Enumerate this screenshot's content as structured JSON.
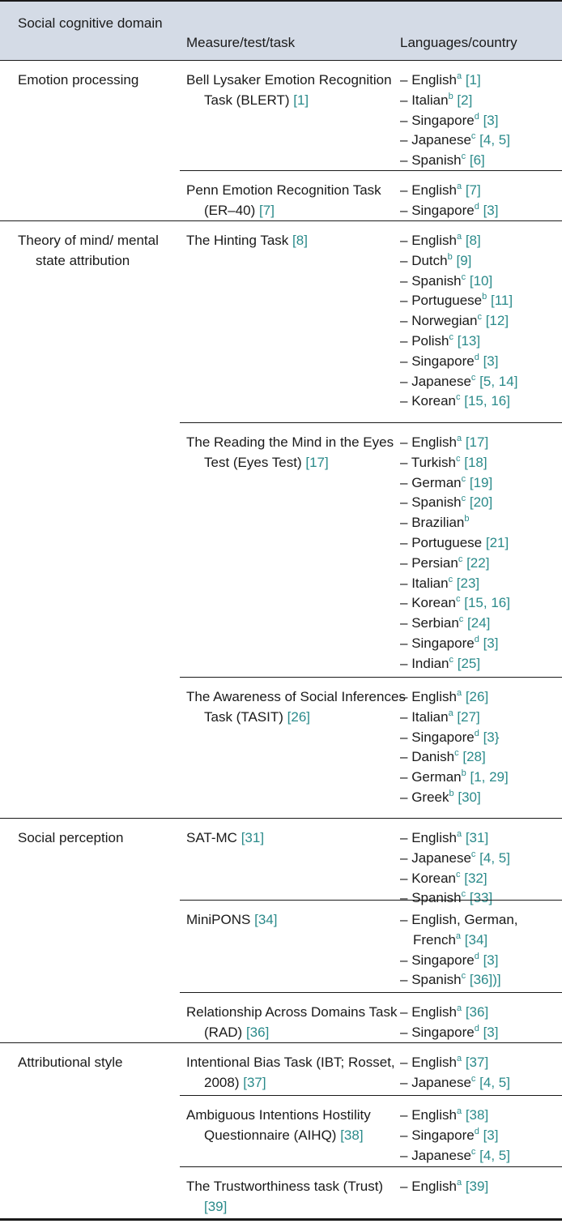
{
  "header": {
    "col1": "Social cognitive domain",
    "col2": "Measure/test/task",
    "col3": "Languages/country"
  },
  "domains": [
    {
      "label": "Emotion processing",
      "measures": [
        {
          "name": "Bell Lysaker Emotion Recognition Task (BLERT)",
          "ref": "[1]",
          "langs": [
            {
              "lang": "English",
              "sup": "a",
              "ref": "[1]"
            },
            {
              "lang": "Italian",
              "sup": "b",
              "ref": "[2]"
            },
            {
              "lang": "Singapore",
              "sup": "d",
              "ref": "[3]"
            },
            {
              "lang": "Japanese",
              "sup": "c",
              "ref": "[4, 5]"
            },
            {
              "lang": "Spanish",
              "sup": "c",
              "ref": "[6]"
            }
          ]
        },
        {
          "name": "Penn Emotion Recognition Task (ER–40)",
          "ref": "[7]",
          "langs": [
            {
              "lang": "English",
              "sup": "a",
              "ref": "[7]"
            },
            {
              "lang": "Singapore",
              "sup": "d",
              "ref": "[3]"
            }
          ]
        }
      ]
    },
    {
      "label": "Theory of mind/ mental state attribution",
      "measures": [
        {
          "name": "The Hinting Task",
          "ref": "[8]",
          "langs": [
            {
              "lang": "English",
              "sup": "a",
              "ref": "[8]"
            },
            {
              "lang": "Dutch",
              "sup": "b",
              "ref": "[9]"
            },
            {
              "lang": "Spanish",
              "sup": "c",
              "ref": "[10]"
            },
            {
              "lang": "Portuguese",
              "sup": "b",
              "ref": "[11]"
            },
            {
              "lang": "Norwegian",
              "sup": "c",
              "ref": "[12]"
            },
            {
              "lang": "Polish",
              "sup": "c",
              "ref": "[13]"
            },
            {
              "lang": "Singapore",
              "sup": "d",
              "ref": "[3]"
            },
            {
              "lang": "Japanese",
              "sup": "c",
              "ref": "[5, 14]"
            },
            {
              "lang": "Korean",
              "sup": "c",
              "ref": "[15, 16]"
            }
          ]
        },
        {
          "name": "The Reading the Mind in the Eyes Test (Eyes Test)",
          "ref": "[17]",
          "langs": [
            {
              "lang": "English",
              "sup": "a",
              "ref": "[17]"
            },
            {
              "lang": "Turkish",
              "sup": "c",
              "ref": "[18]"
            },
            {
              "lang": "German",
              "sup": "c",
              "ref": "[19]"
            },
            {
              "lang": "Spanish",
              "sup": "c",
              "ref": "[20]"
            },
            {
              "lang": "Brazilian",
              "sup": "b",
              "ref": ""
            },
            {
              "lang": "Portuguese",
              "sup": "",
              "ref": "[21]"
            },
            {
              "lang": "Persian",
              "sup": "c",
              "ref": "[22]"
            },
            {
              "lang": "Italian",
              "sup": "c",
              "ref": "[23]"
            },
            {
              "lang": "Korean",
              "sup": "c",
              "ref": "[15, 16]"
            },
            {
              "lang": "Serbian",
              "sup": "c",
              "ref": "[24]"
            },
            {
              "lang": "Singapore",
              "sup": "d",
              "ref": "[3]"
            },
            {
              "lang": "Indian",
              "sup": "c",
              "ref": "[25]"
            }
          ]
        },
        {
          "name": "The Awareness of Social Inferences Task (TASIT)",
          "ref": "[26]",
          "langs": [
            {
              "lang": "English",
              "sup": "a",
              "ref": "[26]"
            },
            {
              "lang": "Italian",
              "sup": "a",
              "ref": "[27]"
            },
            {
              "lang": "Singapore",
              "sup": "d",
              "ref": "[3}"
            },
            {
              "lang": "Danish",
              "sup": "c",
              "ref": "[28]"
            },
            {
              "lang": "German",
              "sup": "b",
              "ref": "[1, 29]"
            },
            {
              "lang": "Greek",
              "sup": "b",
              "ref": "[30]"
            }
          ]
        }
      ]
    },
    {
      "label": "Social perception",
      "measures": [
        {
          "name": "SAT-MC",
          "ref": "[31]",
          "langs": [
            {
              "lang": "English",
              "sup": "a",
              "ref": "[31]"
            },
            {
              "lang": "Japanese",
              "sup": "c",
              "ref": "[4, 5]"
            },
            {
              "lang": "Korean",
              "sup": "c",
              "ref": "[32]"
            },
            {
              "lang": "Spanish",
              "sup": "c",
              "ref": "[33]"
            }
          ]
        },
        {
          "name": "MiniPONS",
          "ref": "[34]",
          "langs": [
            {
              "lang": "English, German, French",
              "sup": "a",
              "ref": "[34]"
            },
            {
              "lang": "Singapore",
              "sup": "d",
              "ref": "[3]"
            },
            {
              "lang": "Spanish",
              "sup": "c",
              "ref": "[36])]"
            }
          ]
        },
        {
          "name": "Relationship Across Domains Task (RAD)",
          "ref": "[36]",
          "langs": [
            {
              "lang": "English",
              "sup": "a",
              "ref": "[36]"
            },
            {
              "lang": "Singapore",
              "sup": "d",
              "ref": "[3]"
            }
          ]
        }
      ]
    },
    {
      "label": "Attributional style",
      "measures": [
        {
          "name": "Intentional Bias Task (IBT; Rosset, 2008)",
          "ref": "[37]",
          "langs": [
            {
              "lang": "English",
              "sup": "a",
              "ref": "[37]"
            },
            {
              "lang": "Japanese",
              "sup": "c",
              "ref": "[4, 5]"
            }
          ]
        },
        {
          "name": "Ambiguous Intentions Hostility Questionnaire (AIHQ)",
          "ref": "[38]",
          "langs": [
            {
              "lang": "English",
              "sup": "a",
              "ref": "[38]"
            },
            {
              "lang": "Singapore",
              "sup": "d",
              "ref": "[3]"
            },
            {
              "lang": "Japanese",
              "sup": "c",
              "ref": "[4, 5]"
            }
          ]
        },
        {
          "name": "The Trustworthiness task (Trust)",
          "ref": "[39]",
          "langs": [
            {
              "lang": "English",
              "sup": "a",
              "ref": "[39]"
            }
          ]
        }
      ]
    }
  ]
}
